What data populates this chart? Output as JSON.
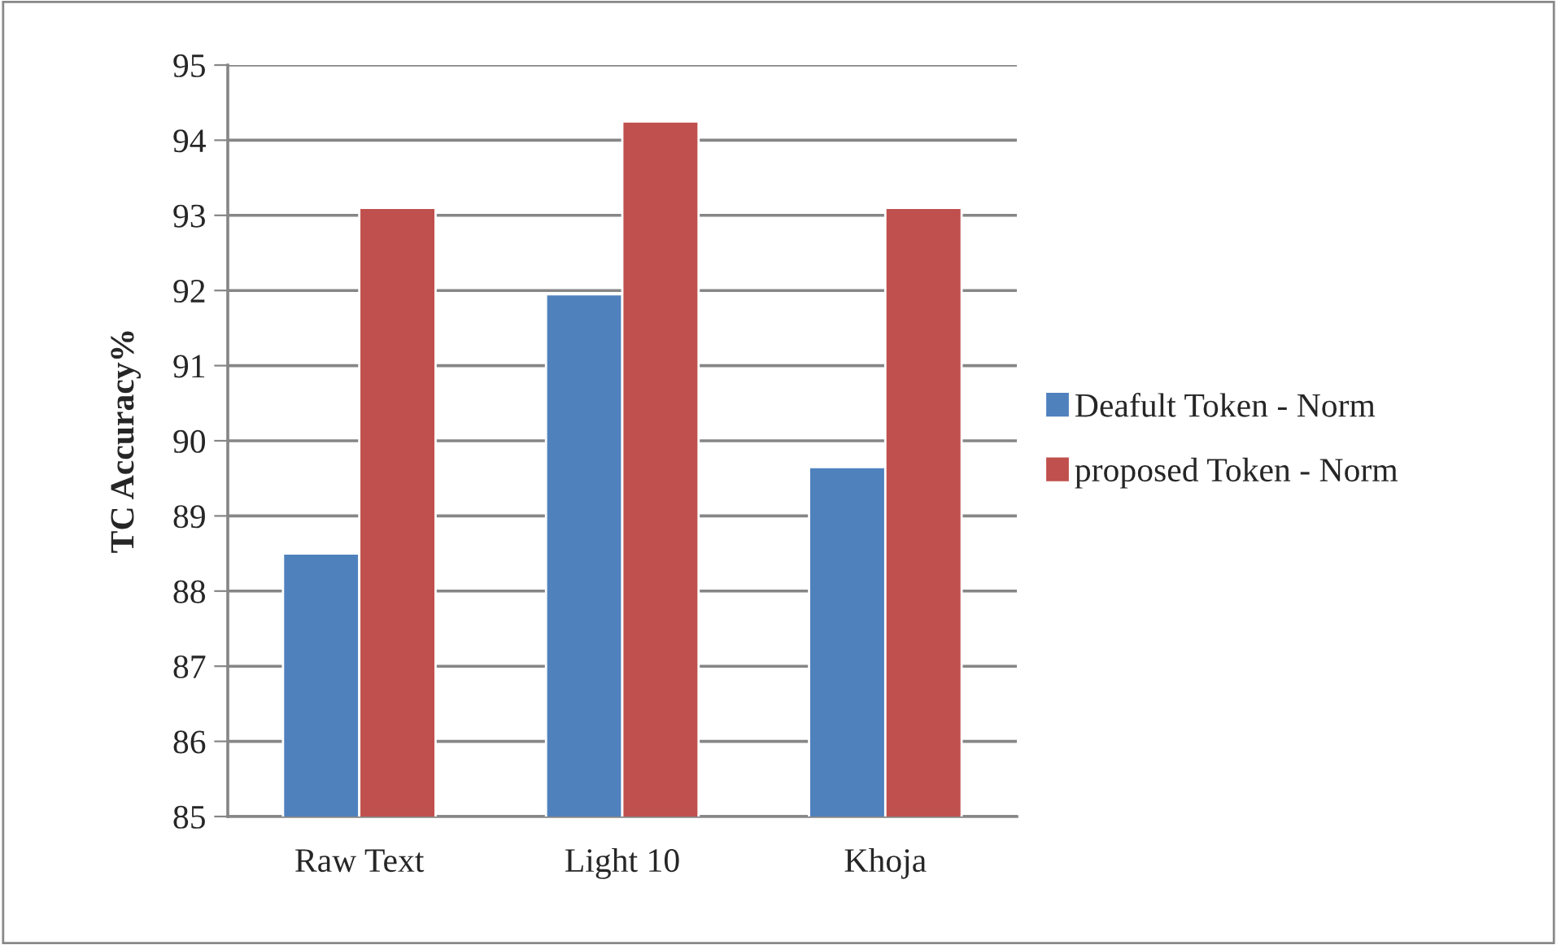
{
  "chart_data": {
    "type": "bar",
    "ylabel": "TC Accuracy%",
    "categories": [
      "Raw Text",
      "Light 10",
      "Khoja"
    ],
    "series": [
      {
        "name": "Deafult Token - Norm",
        "color": "#4f81bd",
        "values": [
          88.5,
          91.95,
          89.65
        ]
      },
      {
        "name": "proposed Token - Norm",
        "color": "#c0504d",
        "values": [
          93.1,
          94.25,
          93.1
        ]
      }
    ],
    "ylim": [
      85,
      95
    ],
    "yticks": [
      85,
      86,
      87,
      88,
      89,
      90,
      91,
      92,
      93,
      94,
      95
    ],
    "grid": "y",
    "legend": "right"
  }
}
